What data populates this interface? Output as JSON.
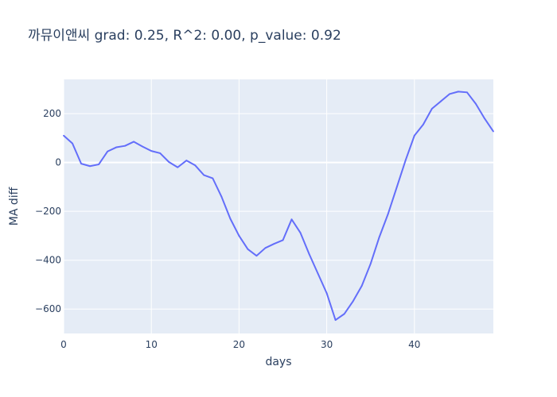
{
  "chart_data": {
    "type": "line",
    "title": "까뮤이앤씨 grad: 0.25, R^2: 0.00, p_value: 0.92",
    "xlabel": "days",
    "ylabel": "MA diff",
    "xlim": [
      0,
      49
    ],
    "ylim": [
      -700,
      340
    ],
    "xticks": [
      0,
      10,
      20,
      30,
      40
    ],
    "yticks": [
      -600,
      -400,
      -200,
      0,
      200
    ],
    "ytick_labels": [
      "−600",
      "−400",
      "−200",
      "0",
      "200"
    ],
    "grid": true,
    "colors": {
      "line": "#636efa",
      "plot_bg": "#e5ecf6",
      "grid": "#ffffff",
      "text": "#2a3f5f"
    },
    "series": [
      {
        "x": [
          0,
          1,
          2,
          3,
          4,
          5,
          6,
          7,
          8,
          9,
          10,
          11,
          12,
          13,
          14,
          15,
          16,
          17,
          18,
          19,
          20,
          21,
          22,
          23,
          24,
          25,
          26,
          27,
          28,
          29,
          30,
          31,
          32,
          33,
          34,
          35,
          36,
          37,
          38,
          39,
          40,
          41,
          42,
          43,
          44,
          45,
          46,
          47,
          48,
          49
        ],
        "values": [
          110,
          78,
          -5,
          -15,
          -8,
          45,
          62,
          68,
          85,
          65,
          47,
          38,
          2,
          -20,
          8,
          -12,
          -52,
          -65,
          -140,
          -230,
          -300,
          -355,
          -382,
          -350,
          -333,
          -318,
          -233,
          -288,
          -375,
          -455,
          -535,
          -645,
          -620,
          -568,
          -505,
          -415,
          -305,
          -210,
          -100,
          10,
          110,
          155,
          220,
          250,
          280,
          290,
          287,
          240,
          180,
          127
        ]
      }
    ]
  }
}
